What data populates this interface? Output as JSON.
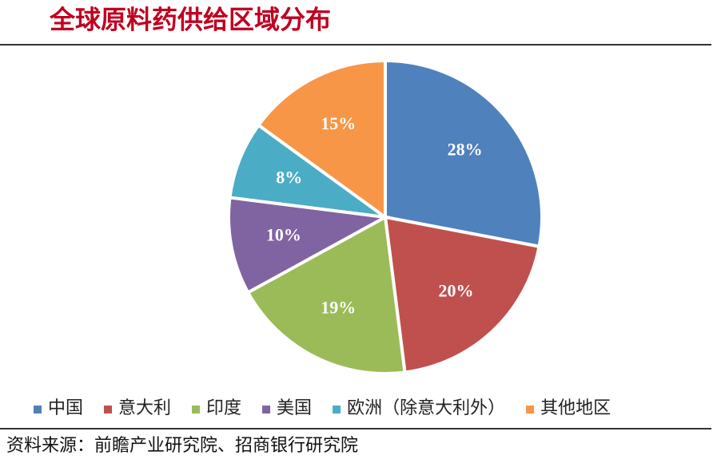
{
  "chart_data": {
    "type": "pie",
    "title": "全球原料药供给区域分布",
    "categories": [
      "中国",
      "意大利",
      "印度",
      "美国",
      "欧洲（除意大利外）",
      "其他地区"
    ],
    "values": [
      28,
      20,
      19,
      10,
      8,
      15
    ],
    "value_labels": [
      "28%",
      "20%",
      "19%",
      "10%",
      "8%",
      "15%"
    ],
    "colors": [
      "#4f81bd",
      "#c0504d",
      "#9bbb59",
      "#8064a2",
      "#4bacc6",
      "#f79646"
    ],
    "legend": "bottom",
    "source": "资料来源：前瞻产业研究院、招商银行研究院"
  }
}
